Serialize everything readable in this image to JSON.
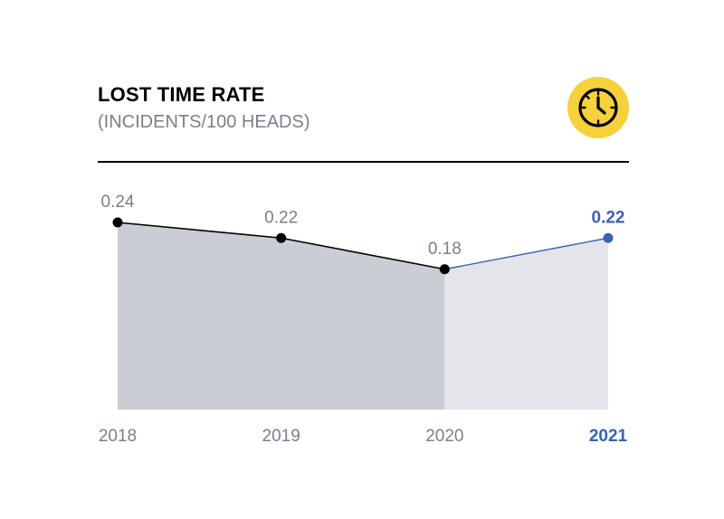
{
  "header": {
    "title": "LOST TIME RATE",
    "subtitle": "(INCIDENTS/100 HEADS)"
  },
  "icon": {
    "name": "clock-icon",
    "badge_color": "#f7d13c",
    "stroke_color": "#000000"
  },
  "colors": {
    "past_area": "#cbcdd4",
    "current_area": "#e4e5ea",
    "past_line": "#000000",
    "current_line": "#3a62b2",
    "muted_text": "#7a7f8c",
    "highlight_text": "#3a62b2"
  },
  "chart_data": {
    "type": "area",
    "categories": [
      "2018",
      "2019",
      "2020",
      "2021"
    ],
    "value_labels": [
      "0.24",
      "0.22",
      "0.18",
      "0.22"
    ],
    "values": [
      0.24,
      0.22,
      0.18,
      0.22
    ],
    "highlight_index": 3,
    "title": "LOST TIME RATE",
    "subtitle": "(INCIDENTS/100 HEADS)",
    "xlabel": "",
    "ylabel": "",
    "ylim": [
      0,
      0.24
    ],
    "grid": false,
    "legend": "none"
  }
}
